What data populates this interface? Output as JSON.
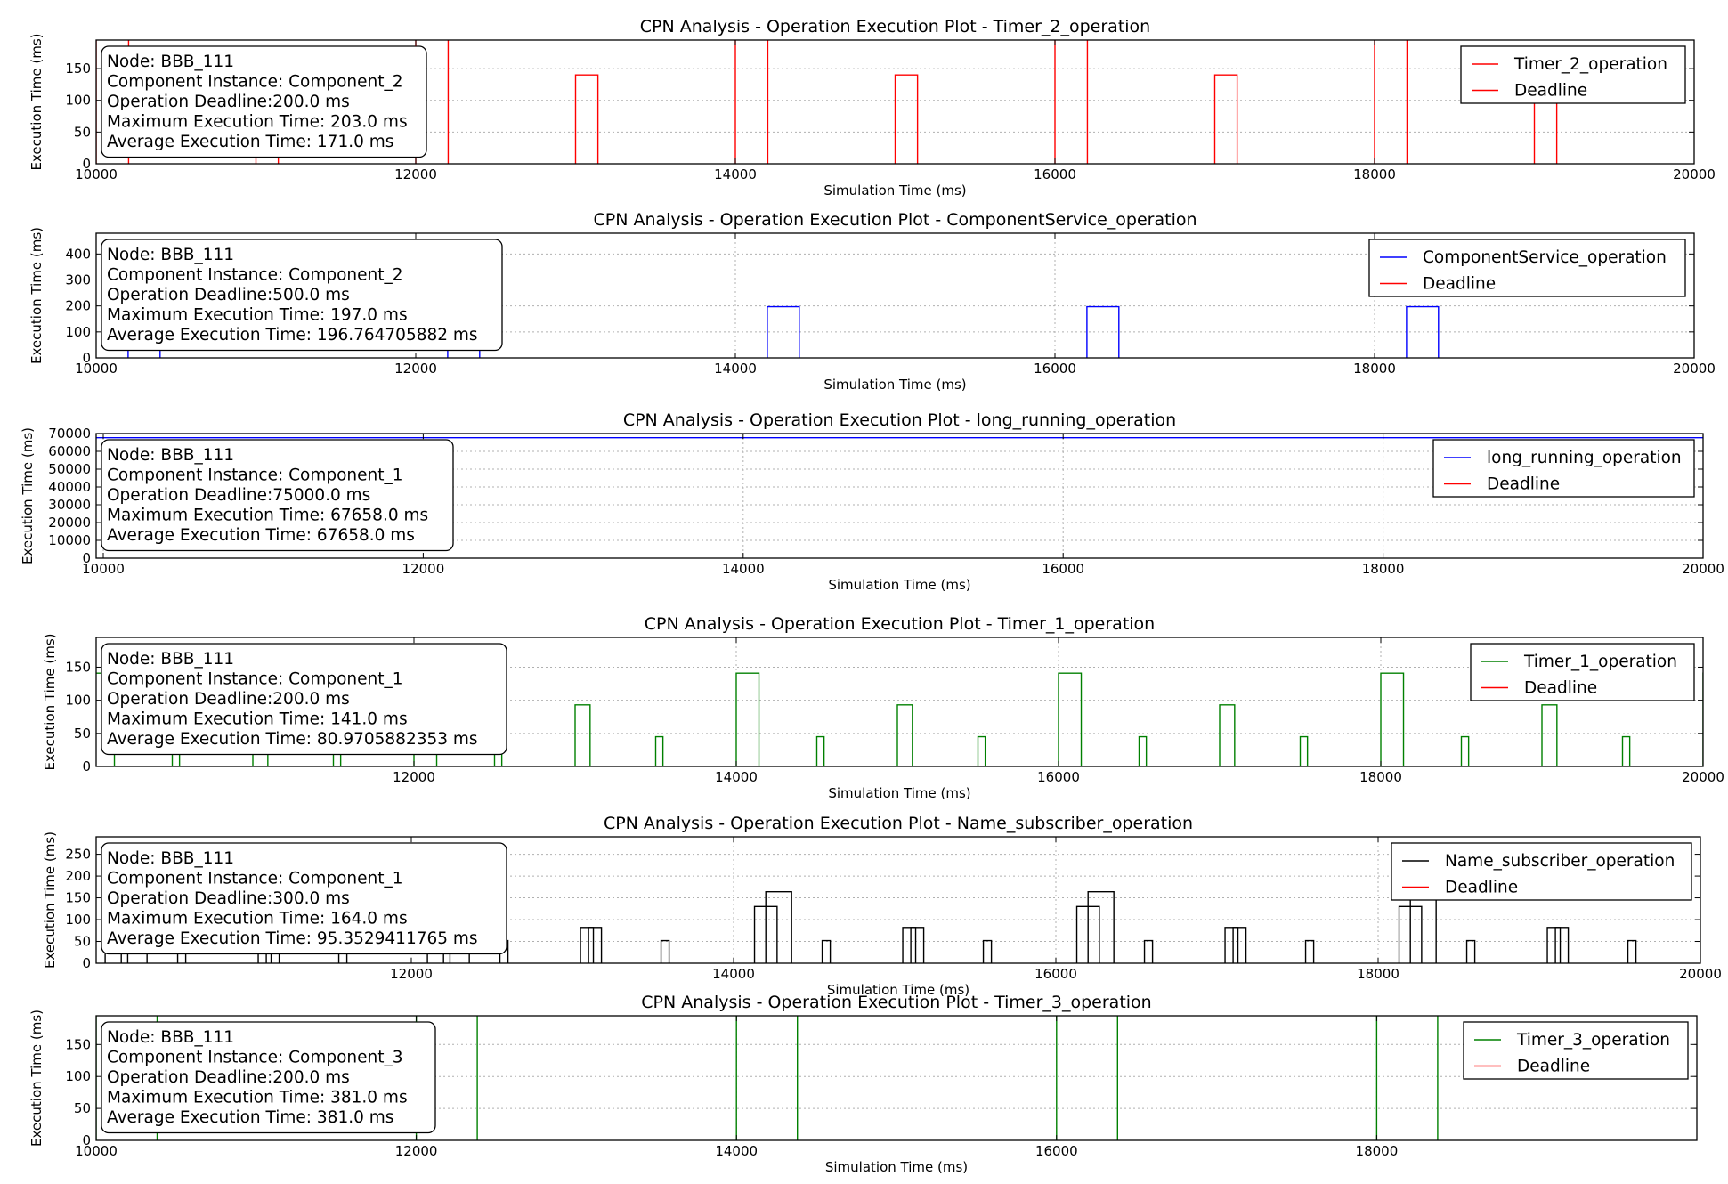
{
  "chart_data": [
    {
      "type": "line",
      "title": "CPN Analysis - Operation Execution Plot - Timer_2_operation",
      "xlabel": "Simulation Time (ms)",
      "ylabel": "Execution Time (ms)",
      "xlim": [
        10000,
        20000
      ],
      "ylim": [
        0,
        195
      ],
      "xticks": [
        "10000",
        "12000",
        "14000",
        "16000",
        "18000",
        "20000"
      ],
      "yticks": [
        "0",
        "50",
        "100",
        "150"
      ],
      "info_lines": [
        "Node: BBB_111",
        "Component Instance: Component_2",
        "Operation Deadline:200.0 ms",
        "Maximum Execution Time: 203.0 ms",
        "Average Execution Time: 171.0 ms"
      ],
      "legend": [
        "Timer_2_operation",
        "Deadline"
      ],
      "color": "#ff0000",
      "series": [
        {
          "name": "Timer_2_operation",
          "pulses": [
            {
              "x0": 10000,
              "x1": 10203,
              "y": 203
            },
            {
              "x0": 11000,
              "x1": 11140,
              "y": 140
            },
            {
              "x0": 12000,
              "x1": 12203,
              "y": 203
            },
            {
              "x0": 13000,
              "x1": 13140,
              "y": 140
            },
            {
              "x0": 14000,
              "x1": 14203,
              "y": 203
            },
            {
              "x0": 15000,
              "x1": 15140,
              "y": 140
            },
            {
              "x0": 16000,
              "x1": 16203,
              "y": 203
            },
            {
              "x0": 17000,
              "x1": 17140,
              "y": 140
            },
            {
              "x0": 18000,
              "x1": 18203,
              "y": 203
            },
            {
              "x0": 19000,
              "x1": 19140,
              "y": 140
            }
          ]
        }
      ],
      "deadline": 200
    },
    {
      "type": "line",
      "title": "CPN Analysis - Operation Execution Plot - ComponentService_operation",
      "xlabel": "Simulation Time (ms)",
      "ylabel": "Execution Time (ms)",
      "xlim": [
        10000,
        20000
      ],
      "ylim": [
        0,
        480
      ],
      "xticks": [
        "10000",
        "12000",
        "14000",
        "16000",
        "18000",
        "20000"
      ],
      "yticks": [
        "0",
        "100",
        "200",
        "300",
        "400"
      ],
      "info_lines": [
        "Node: BBB_111",
        "Component Instance: Component_2",
        "Operation Deadline:500.0 ms",
        "Maximum Execution Time: 197.0 ms",
        "Average Execution Time: 196.764705882 ms"
      ],
      "legend": [
        "ComponentService_operation",
        "Deadline"
      ],
      "color": "#0000ff",
      "series": [
        {
          "name": "ComponentService_operation",
          "pulses": [
            {
              "x0": 10200,
              "x1": 10400,
              "y": 197
            },
            {
              "x0": 12200,
              "x1": 12400,
              "y": 197
            },
            {
              "x0": 14200,
              "x1": 14400,
              "y": 197
            },
            {
              "x0": 16200,
              "x1": 16400,
              "y": 197
            },
            {
              "x0": 18200,
              "x1": 18400,
              "y": 197
            }
          ]
        }
      ],
      "deadline": 500
    },
    {
      "type": "line",
      "title": "CPN Analysis - Operation Execution Plot - long_running_operation",
      "xlabel": "Simulation Time (ms)",
      "ylabel": "Execution Time (ms)",
      "xlim": [
        10000,
        20000
      ],
      "ylim": [
        0,
        70000
      ],
      "xticks": [
        "10000",
        "12000",
        "14000",
        "16000",
        "18000",
        "20000"
      ],
      "yticks": [
        "0",
        "10000",
        "20000",
        "30000",
        "40000",
        "50000",
        "60000",
        "70000"
      ],
      "info_lines": [
        "Node: BBB_111",
        "Component Instance: Component_1",
        "Operation Deadline:75000.0 ms",
        "Maximum Execution Time: 67658.0 ms",
        "Average Execution Time: 67658.0 ms"
      ],
      "legend": [
        "long_running_operation",
        "Deadline"
      ],
      "color": "#0000ff",
      "series": [
        {
          "name": "long_running_operation",
          "pulses": [
            {
              "x0": 9900,
              "x1": 20100,
              "y": 67658
            }
          ]
        }
      ],
      "deadline": 75000
    },
    {
      "type": "line",
      "title": "CPN Analysis - Operation Execution Plot - Timer_1_operation",
      "xlabel": "Simulation Time (ms)",
      "ylabel": "Execution Time (ms)",
      "xlim": [
        10000,
        20000
      ],
      "ylim": [
        0,
        195
      ],
      "xticks": [
        "12000",
        "14000",
        "16000",
        "18000",
        "20000"
      ],
      "yticks": [
        "0",
        "50",
        "100",
        "150"
      ],
      "info_lines": [
        "Node: BBB_111",
        "Component Instance: Component_1",
        "Operation Deadline:200.0 ms",
        "Maximum Execution Time: 141.0 ms",
        "Average Execution Time: 80.9705882353 ms"
      ],
      "legend": [
        "Timer_1_operation",
        "Deadline"
      ],
      "color": "#008000",
      "series": [
        {
          "name": "Timer_1_operation",
          "pulses": [
            {
              "x0": 10000,
              "x1": 10141,
              "y": 141
            },
            {
              "x0": 10500,
              "x1": 10545,
              "y": 45
            },
            {
              "x0": 11000,
              "x1": 11093,
              "y": 93
            },
            {
              "x0": 11500,
              "x1": 11545,
              "y": 45
            },
            {
              "x0": 12000,
              "x1": 12141,
              "y": 141
            },
            {
              "x0": 12500,
              "x1": 12545,
              "y": 45
            },
            {
              "x0": 13000,
              "x1": 13093,
              "y": 93
            },
            {
              "x0": 13500,
              "x1": 13545,
              "y": 45
            },
            {
              "x0": 14000,
              "x1": 14141,
              "y": 141
            },
            {
              "x0": 14500,
              "x1": 14545,
              "y": 45
            },
            {
              "x0": 15000,
              "x1": 15093,
              "y": 93
            },
            {
              "x0": 15500,
              "x1": 15545,
              "y": 45
            },
            {
              "x0": 16000,
              "x1": 16141,
              "y": 141
            },
            {
              "x0": 16500,
              "x1": 16545,
              "y": 45
            },
            {
              "x0": 17000,
              "x1": 17093,
              "y": 93
            },
            {
              "x0": 17500,
              "x1": 17545,
              "y": 45
            },
            {
              "x0": 18000,
              "x1": 18141,
              "y": 141
            },
            {
              "x0": 18500,
              "x1": 18545,
              "y": 45
            },
            {
              "x0": 19000,
              "x1": 19093,
              "y": 93
            },
            {
              "x0": 19500,
              "x1": 19545,
              "y": 45
            },
            {
              "x0": 20000,
              "x1": 20141,
              "y": 141
            }
          ]
        }
      ],
      "deadline": 200
    },
    {
      "type": "line",
      "title": "CPN Analysis - Operation Execution Plot - Name_subscriber_operation",
      "xlabel": "Simulation Time (ms)",
      "ylabel": "Execution Time (ms)",
      "xlim": [
        10000,
        20000
      ],
      "ylim": [
        0,
        290
      ],
      "xticks": [
        "12000",
        "14000",
        "16000",
        "18000",
        "20000"
      ],
      "yticks": [
        "0",
        "50",
        "100",
        "150",
        "200",
        "250"
      ],
      "info_lines": [
        "Node: BBB_111",
        "Component Instance: Component_1",
        "Operation Deadline:300.0 ms",
        "Maximum Execution Time: 164.0 ms",
        "Average Execution Time: 95.3529411765 ms"
      ],
      "legend": [
        "Name_subscriber_operation",
        "Deadline"
      ],
      "color": "#000000",
      "series": [
        {
          "name": "Name_subscriber_operation",
          "pulses": [
            {
              "x0": 10100,
              "x1": 10240,
              "y": 130
            },
            {
              "x0": 10200,
              "x1": 10360,
              "y": 164
            },
            {
              "x0": 10550,
              "x1": 10600,
              "y": 52
            },
            {
              "x0": 11050,
              "x1": 11130,
              "y": 82
            },
            {
              "x0": 11100,
              "x1": 11180,
              "y": 82
            },
            {
              "x0": 11550,
              "x1": 11600,
              "y": 52
            },
            {
              "x0": 12100,
              "x1": 12240,
              "y": 130
            },
            {
              "x0": 12200,
              "x1": 12360,
              "y": 164
            },
            {
              "x0": 12550,
              "x1": 12600,
              "y": 52
            },
            {
              "x0": 13050,
              "x1": 13130,
              "y": 82
            },
            {
              "x0": 13100,
              "x1": 13180,
              "y": 82
            },
            {
              "x0": 13550,
              "x1": 13600,
              "y": 52
            },
            {
              "x0": 14130,
              "x1": 14270,
              "y": 130
            },
            {
              "x0": 14200,
              "x1": 14360,
              "y": 164
            },
            {
              "x0": 14550,
              "x1": 14600,
              "y": 52
            },
            {
              "x0": 15050,
              "x1": 15130,
              "y": 82
            },
            {
              "x0": 15100,
              "x1": 15180,
              "y": 82
            },
            {
              "x0": 15550,
              "x1": 15600,
              "y": 52
            },
            {
              "x0": 16130,
              "x1": 16270,
              "y": 130
            },
            {
              "x0": 16200,
              "x1": 16360,
              "y": 164
            },
            {
              "x0": 16550,
              "x1": 16600,
              "y": 52
            },
            {
              "x0": 17050,
              "x1": 17130,
              "y": 82
            },
            {
              "x0": 17100,
              "x1": 17180,
              "y": 82
            },
            {
              "x0": 17550,
              "x1": 17600,
              "y": 52
            },
            {
              "x0": 18130,
              "x1": 18270,
              "y": 130
            },
            {
              "x0": 18200,
              "x1": 18360,
              "y": 164
            },
            {
              "x0": 18550,
              "x1": 18600,
              "y": 52
            },
            {
              "x0": 19050,
              "x1": 19130,
              "y": 82
            },
            {
              "x0": 19100,
              "x1": 19180,
              "y": 82
            },
            {
              "x0": 19550,
              "x1": 19600,
              "y": 52
            }
          ]
        }
      ],
      "deadline": 300
    },
    {
      "type": "line",
      "title": "CPN Analysis - Operation Execution Plot - Timer_3_operation",
      "xlabel": "Simulation Time (ms)",
      "ylabel": "Execution Time (ms)",
      "xlim": [
        10000,
        20000
      ],
      "ylim": [
        0,
        195
      ],
      "xticks": [
        "10000",
        "12000",
        "14000",
        "16000",
        "18000"
      ],
      "yticks": [
        "0",
        "50",
        "100",
        "150"
      ],
      "info_lines": [
        "Node: BBB_111",
        "Component Instance: Component_3",
        "Operation Deadline:200.0 ms",
        "Maximum Execution Time: 381.0 ms",
        "Average Execution Time: 381.0 ms"
      ],
      "legend": [
        "Timer_3_operation",
        "Deadline"
      ],
      "color": "#008000",
      "series": [
        {
          "name": "Timer_3_operation",
          "pulses": [
            {
              "x0": 10000,
              "x1": 10381,
              "y": 381
            },
            {
              "x0": 12000,
              "x1": 12381,
              "y": 381
            },
            {
              "x0": 14000,
              "x1": 14381,
              "y": 381
            },
            {
              "x0": 16000,
              "x1": 16381,
              "y": 381
            },
            {
              "x0": 18000,
              "x1": 18381,
              "y": 381
            }
          ]
        }
      ],
      "deadline": 200
    }
  ]
}
